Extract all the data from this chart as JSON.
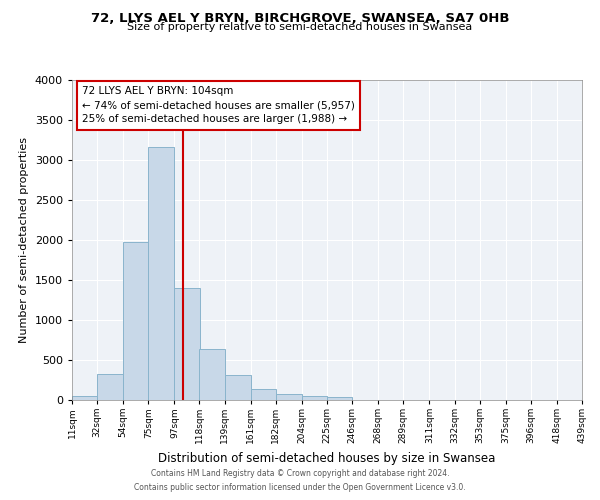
{
  "title": "72, LLYS AEL Y BRYN, BIRCHGROVE, SWANSEA, SA7 0HB",
  "subtitle": "Size of property relative to semi-detached houses in Swansea",
  "xlabel": "Distribution of semi-detached houses by size in Swansea",
  "ylabel": "Number of semi-detached properties",
  "footnote1": "Contains HM Land Registry data © Crown copyright and database right 2024.",
  "footnote2": "Contains public sector information licensed under the Open Government Licence v3.0.",
  "bar_edges": [
    11,
    32,
    54,
    75,
    97,
    118,
    139,
    161,
    182,
    204,
    225,
    246,
    268,
    289,
    311,
    332,
    353,
    375,
    396,
    418,
    439
  ],
  "bar_heights": [
    50,
    320,
    1980,
    3160,
    1400,
    640,
    310,
    140,
    75,
    50,
    40,
    0,
    0,
    0,
    0,
    0,
    0,
    0,
    0,
    0
  ],
  "tick_labels": [
    "11sqm",
    "32sqm",
    "54sqm",
    "75sqm",
    "97sqm",
    "118sqm",
    "139sqm",
    "161sqm",
    "182sqm",
    "204sqm",
    "225sqm",
    "246sqm",
    "268sqm",
    "289sqm",
    "311sqm",
    "332sqm",
    "353sqm",
    "375sqm",
    "396sqm",
    "418sqm",
    "439sqm"
  ],
  "property_line_x": 104,
  "annotation_title": "72 LLYS AEL Y BRYN: 104sqm",
  "annotation_line1": "← 74% of semi-detached houses are smaller (5,957)",
  "annotation_line2": "25% of semi-detached houses are larger (1,988) →",
  "bar_color": "#c8d8e8",
  "bar_edge_color": "#8ab4cc",
  "line_color": "#cc0000",
  "annotation_box_color": "#cc0000",
  "ylim": [
    0,
    4000
  ],
  "background_color": "#eef2f7"
}
